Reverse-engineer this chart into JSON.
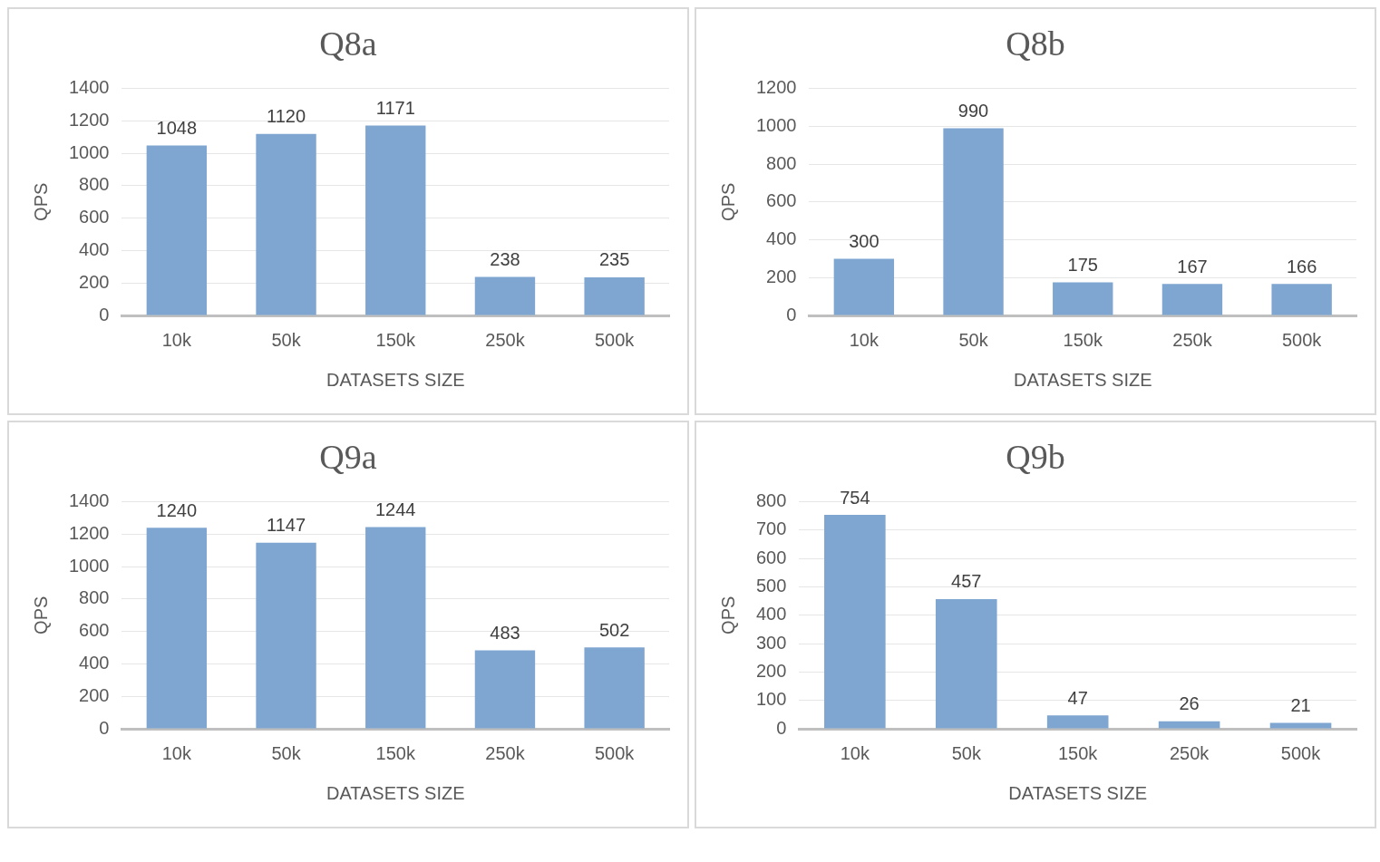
{
  "chart_data": [
    {
      "type": "bar",
      "title": "Q8a",
      "categories": [
        "10k",
        "50k",
        "150k",
        "250k",
        "500k"
      ],
      "values": [
        1048,
        1120,
        1171,
        238,
        235
      ],
      "color": "#7fa6d1",
      "xlabel": "DATASETS SIZE",
      "ylabel": "QPS",
      "ylim": [
        0,
        1400
      ],
      "yticks": [
        0,
        200,
        400,
        600,
        800,
        1000,
        1200,
        1400
      ],
      "grid": "y",
      "data_labels": true
    },
    {
      "type": "bar",
      "title": "Q8b",
      "categories": [
        "10k",
        "50k",
        "150k",
        "250k",
        "500k"
      ],
      "values": [
        300,
        990,
        175,
        167,
        166
      ],
      "color": "#7fa6d1",
      "xlabel": "DATASETS SIZE",
      "ylabel": "QPS",
      "ylim": [
        0,
        1200
      ],
      "yticks": [
        0,
        200,
        400,
        600,
        800,
        1000,
        1200
      ],
      "grid": "y",
      "data_labels": true
    },
    {
      "type": "bar",
      "title": "Q9a",
      "categories": [
        "10k",
        "50k",
        "150k",
        "250k",
        "500k"
      ],
      "values": [
        1240,
        1147,
        1244,
        483,
        502
      ],
      "color": "#7fa6d1",
      "xlabel": "DATASETS SIZE",
      "ylabel": "QPS",
      "ylim": [
        0,
        1400
      ],
      "yticks": [
        0,
        200,
        400,
        600,
        800,
        1000,
        1200,
        1400
      ],
      "grid": "y",
      "data_labels": true
    },
    {
      "type": "bar",
      "title": "Q9b",
      "categories": [
        "10k",
        "50k",
        "150k",
        "250k",
        "500k"
      ],
      "values": [
        754,
        457,
        47,
        26,
        21
      ],
      "color": "#7fa6d1",
      "xlabel": "DATASETS SIZE",
      "ylabel": "QPS",
      "ylim": [
        0,
        800
      ],
      "yticks": [
        0,
        100,
        200,
        300,
        400,
        500,
        600,
        700,
        800
      ],
      "grid": "y",
      "data_labels": true
    }
  ]
}
